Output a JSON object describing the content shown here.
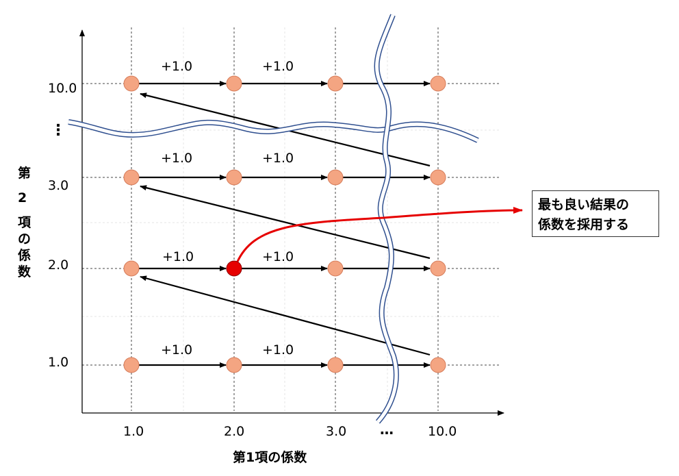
{
  "axes": {
    "x_label": "第1項の係数",
    "y_label": "第\n2\n項\nの\n係\n数",
    "x_ticks": [
      "1.0",
      "2.0",
      "3.0",
      "10.0"
    ],
    "x_ellipsis": "…",
    "y_ticks": [
      "10.0",
      "3.0",
      "2.0",
      "1.0"
    ],
    "y_ellipsis": "⋮"
  },
  "step_labels": [
    "+1.0",
    "+1.0",
    "+1.0",
    "+1.0",
    "+1.0",
    "+1.0",
    "+1.0",
    "+1.0"
  ],
  "callout": {
    "line1": "最も良い結果の",
    "line2": "係数を採用する"
  },
  "colors": {
    "node_fill": "#f4a582",
    "node_stroke": "#d67c5a",
    "best_fill": "#e60000",
    "best_stroke": "#8b0000",
    "highlight_arrow": "#e60000",
    "break_line": "#2f4f8f"
  },
  "grid": {
    "columns": [
      "1.0",
      "2.0",
      "3.0",
      "10.0"
    ],
    "rows": [
      "10.0",
      "3.0",
      "2.0",
      "1.0"
    ],
    "best": {
      "column": "2.0",
      "row": "2.0"
    }
  }
}
